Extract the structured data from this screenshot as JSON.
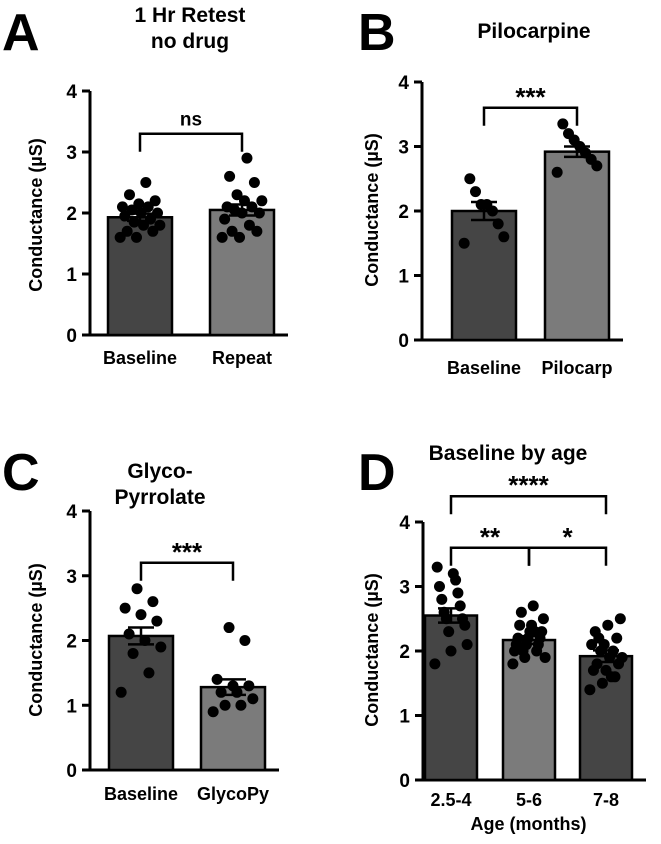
{
  "chart_data": [
    {
      "panel": "A",
      "type": "bar",
      "title": "1 Hr Retest\nno drug",
      "ylabel": "Conductance (µS)",
      "xlabel": "",
      "ylim": [
        0,
        4
      ],
      "yticks": [
        "0",
        "1",
        "2",
        "3",
        "4"
      ],
      "categories": [
        "Baseline",
        "Repeat"
      ],
      "values": [
        1.93,
        2.05
      ],
      "errors": [
        0.06,
        0.09
      ],
      "bar_colors": [
        "#454545",
        "#7b7b7b"
      ],
      "points": [
        [
          1.6,
          1.6,
          1.7,
          1.7,
          1.8,
          1.8,
          1.85,
          1.9,
          1.95,
          2.0,
          2.0,
          2.05,
          2.1,
          2.1,
          2.15,
          2.2,
          2.3,
          2.5
        ],
        [
          1.6,
          1.6,
          1.7,
          1.7,
          1.8,
          1.9,
          2.0,
          2.0,
          2.05,
          2.1,
          2.1,
          2.2,
          2.2,
          2.3,
          2.5,
          2.6,
          2.9
        ]
      ],
      "comparisons": [
        {
          "from": 0,
          "to": 1,
          "y": 3.3,
          "label": "ns"
        }
      ]
    },
    {
      "panel": "B",
      "type": "bar",
      "title": "Pilocarpine",
      "ylabel": "Conductance (µS)",
      "xlabel": "",
      "ylim": [
        0,
        4
      ],
      "yticks": [
        "0",
        "1",
        "2",
        "3",
        "4"
      ],
      "categories": [
        "Baseline",
        "Pilocarp"
      ],
      "values": [
        2.0,
        2.92
      ],
      "errors": [
        0.14,
        0.08
      ],
      "bar_colors": [
        "#454545",
        "#7b7b7b"
      ],
      "points": [
        [
          1.5,
          1.6,
          1.8,
          2.0,
          2.1,
          2.1,
          2.3,
          2.5
        ],
        [
          2.6,
          2.7,
          2.8,
          2.9,
          3.0,
          3.1,
          3.2,
          3.35
        ]
      ],
      "comparisons": [
        {
          "from": 0,
          "to": 1,
          "y": 3.6,
          "label": "***"
        }
      ]
    },
    {
      "panel": "C",
      "type": "bar",
      "title": "Glyco-\nPyrrolate",
      "ylabel": "Conductance (µS)",
      "xlabel": "",
      "ylim": [
        0,
        4
      ],
      "yticks": [
        "0",
        "1",
        "2",
        "3",
        "4"
      ],
      "categories": [
        "Baseline",
        "GlycoPy"
      ],
      "values": [
        2.07,
        1.28
      ],
      "errors": [
        0.13,
        0.12
      ],
      "bar_colors": [
        "#454545",
        "#7b7b7b"
      ],
      "points": [
        [
          1.2,
          1.5,
          1.8,
          1.9,
          2.0,
          2.1,
          2.3,
          2.4,
          2.5,
          2.6,
          2.8
        ],
        [
          0.9,
          1.0,
          1.0,
          1.1,
          1.2,
          1.2,
          1.3,
          1.3,
          1.4,
          2.0,
          2.2
        ]
      ],
      "comparisons": [
        {
          "from": 0,
          "to": 1,
          "y": 3.2,
          "label": "***"
        }
      ]
    },
    {
      "panel": "D",
      "type": "bar",
      "title": "Baseline by age",
      "ylabel": "Conductance (µS)",
      "xlabel": "Age (months)",
      "ylim": [
        0,
        4
      ],
      "yticks": [
        "0",
        "1",
        "2",
        "3",
        "4"
      ],
      "categories": [
        "2.5-4",
        "5-6",
        "7-8"
      ],
      "values": [
        2.55,
        2.17,
        1.92
      ],
      "errors": [
        0.11,
        0.06,
        0.09
      ],
      "bar_colors": [
        "#454545",
        "#7b7b7b",
        "#454545"
      ],
      "points": [
        [
          1.8,
          2.0,
          2.1,
          2.3,
          2.4,
          2.5,
          2.5,
          2.6,
          2.7,
          2.8,
          2.9,
          3.0,
          3.1,
          3.3,
          3.2
        ],
        [
          1.8,
          1.9,
          2.0,
          2.0,
          2.1,
          2.1,
          2.1,
          2.2,
          2.2,
          2.2,
          2.3,
          2.3,
          2.4,
          2.4,
          2.5,
          2.6,
          2.7,
          1.9,
          2.0,
          2.3
        ],
        [
          1.4,
          1.5,
          1.6,
          1.7,
          1.7,
          1.8,
          1.8,
          1.9,
          1.9,
          2.0,
          2.0,
          2.1,
          2.1,
          2.2,
          2.3,
          2.4,
          2.5,
          2.2,
          1.6
        ]
      ],
      "comparisons": [
        {
          "from": 0,
          "to": 1,
          "y": 3.6,
          "label": "**"
        },
        {
          "from": 1,
          "to": 2,
          "y": 3.6,
          "label": "*"
        },
        {
          "from": 0,
          "to": 2,
          "y": 4.4,
          "label": "****"
        }
      ]
    }
  ]
}
